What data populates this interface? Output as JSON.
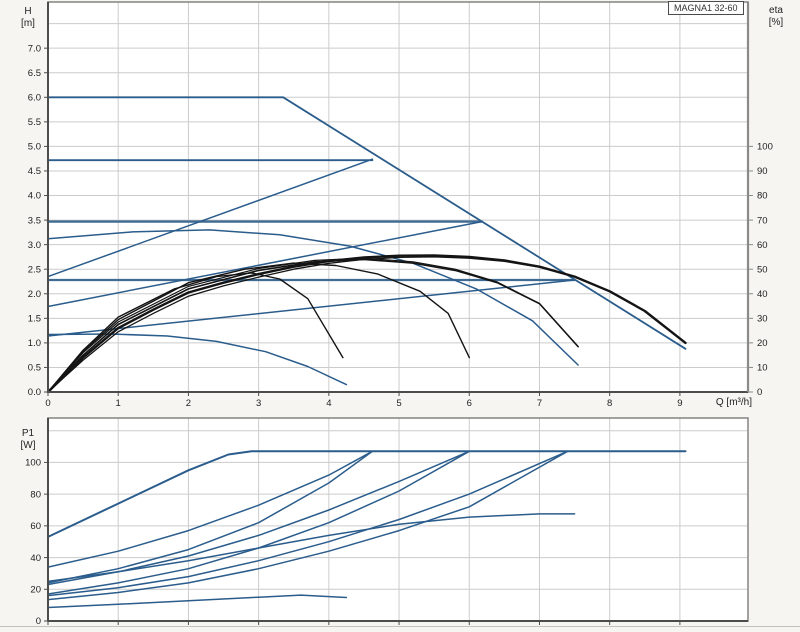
{
  "title_box": "MAGNA1 32-60",
  "labels": {
    "h_axis_1": "H",
    "h_axis_2": "[m]",
    "eta_axis_1": "eta",
    "eta_axis_2": "[%]",
    "q_axis": "Q [m³/h]",
    "p1_axis_1": "P1",
    "p1_axis_2": "[W]"
  },
  "colors": {
    "bg": "#f6f5f1",
    "plot_bg": "#ffffff",
    "grid": "#cccccc",
    "frame": "#8a8a8a",
    "axis_dark": "#4c4c4c",
    "blue": "#2a5c8c",
    "blue_thick": "#3f6a92",
    "black": "#141414",
    "tick_text": "#222222"
  },
  "chart_data": [
    {
      "type": "line",
      "title": "MAGNA1 32-60",
      "xlabel": "Q [m³/h]",
      "ylabel": "H [m]",
      "y2label": "eta [%]",
      "xlim": [
        0,
        9.97
      ],
      "ylim": [
        0,
        7.94
      ],
      "eta_h_per_percent": 0.05,
      "xticks": [
        "0",
        "1",
        "2",
        "3",
        "4",
        "5",
        "6",
        "7",
        "8",
        "9"
      ],
      "xtick_vals": [
        0,
        1,
        2,
        3,
        4,
        5,
        6,
        7,
        8,
        9
      ],
      "ytick_labels": [
        "0.0",
        "0.5",
        "1.0",
        "1.5",
        "2.0",
        "2.5",
        "3.0",
        "3.5",
        "4.0",
        "4.5",
        "5.0",
        "5.5",
        "6.0",
        "6.5",
        "7.0"
      ],
      "ytick_vals": [
        0,
        0.5,
        1,
        1.5,
        2,
        2.5,
        3,
        3.5,
        4,
        4.5,
        5,
        5.5,
        6,
        6.5,
        7
      ],
      "ygrid_vals": [
        0.5,
        1,
        1.5,
        2,
        2.5,
        3,
        3.5,
        4,
        4.5,
        5,
        5.5,
        6,
        6.5,
        7,
        7.5
      ],
      "eta_tick_labels": [
        "0",
        "10",
        "20",
        "30",
        "40",
        "50",
        "60",
        "70",
        "80",
        "90",
        "100"
      ],
      "eta_tick_vals": [
        0,
        10,
        20,
        30,
        40,
        50,
        60,
        70,
        80,
        90,
        100
      ],
      "grid": true,
      "legend": "none",
      "series": [
        {
          "name": "max-curve",
          "style": "blue",
          "w": 1.8,
          "points": [
            [
              0,
              6.0
            ],
            [
              3.35,
              6.0
            ],
            [
              9.08,
              0.88
            ]
          ]
        },
        {
          "name": "const-pressure-4.7",
          "style": "blue",
          "w": 1.8,
          "points": [
            [
              0,
              4.72
            ],
            [
              4.62,
              4.72
            ]
          ]
        },
        {
          "name": "const-pressure-3.5",
          "style": "blue_thick",
          "w": 2.4,
          "points": [
            [
              0,
              3.47
            ],
            [
              6.18,
              3.47
            ]
          ]
        },
        {
          "name": "const-pressure-2.3",
          "style": "blue_thick",
          "w": 2.2,
          "points": [
            [
              0,
              2.28
            ],
            [
              7.5,
              2.28
            ]
          ]
        },
        {
          "name": "prop-pressure-4.7",
          "style": "blue",
          "w": 1.5,
          "points": [
            [
              0,
              2.35
            ],
            [
              4.62,
              4.74
            ]
          ]
        },
        {
          "name": "prop-pressure-3.5",
          "style": "blue",
          "w": 1.5,
          "points": [
            [
              0,
              1.74
            ],
            [
              6.18,
              3.47
            ]
          ]
        },
        {
          "name": "prop-pressure-2.3",
          "style": "blue",
          "w": 1.5,
          "points": [
            [
              0,
              1.14
            ],
            [
              7.5,
              2.28
            ]
          ]
        },
        {
          "name": "speed-curve-ii",
          "style": "blue",
          "w": 1.5,
          "points": [
            [
              0,
              3.12
            ],
            [
              1.2,
              3.26
            ],
            [
              2.3,
              3.3
            ],
            [
              3.3,
              3.2
            ],
            [
              4.3,
              2.97
            ],
            [
              5.2,
              2.62
            ],
            [
              6.1,
              2.1
            ],
            [
              6.9,
              1.45
            ],
            [
              7.55,
              0.55
            ]
          ]
        },
        {
          "name": "speed-curve-i",
          "style": "blue",
          "w": 1.5,
          "points": [
            [
              0,
              1.17
            ],
            [
              0.9,
              1.18
            ],
            [
              1.7,
              1.14
            ],
            [
              2.4,
              1.03
            ],
            [
              3.1,
              0.82
            ],
            [
              3.7,
              0.52
            ],
            [
              4.25,
              0.15
            ]
          ]
        }
      ],
      "eta_series": [
        {
          "name": "eta-max",
          "w": 2.4,
          "points": [
            [
              0,
              0
            ],
            [
              0.5,
              14
            ],
            [
              1,
              26
            ],
            [
              1.5,
              33.5
            ],
            [
              2,
              40.5
            ],
            [
              2.5,
              44.5
            ],
            [
              3,
              48
            ],
            [
              3.5,
              51
            ],
            [
              4,
              53.3
            ],
            [
              4.5,
              54.8
            ],
            [
              5,
              55.5
            ],
            [
              5.5,
              55.6
            ],
            [
              6,
              55
            ],
            [
              6.5,
              53.6
            ],
            [
              7,
              51
            ],
            [
              7.5,
              47
            ],
            [
              8,
              41
            ],
            [
              8.5,
              33
            ],
            [
              9.08,
              20
            ]
          ]
        },
        {
          "name": "eta-max-band",
          "w": 1.3,
          "points": [
            [
              0,
              0
            ],
            [
              0.5,
              13
            ],
            [
              1,
              24.5
            ],
            [
              1.5,
              32
            ],
            [
              2,
              39
            ],
            [
              2.5,
              43.2
            ],
            [
              3,
              46.8
            ],
            [
              3.5,
              50
            ],
            [
              4,
              52.4
            ],
            [
              4.5,
              54
            ],
            [
              5,
              54.8
            ],
            [
              5.5,
              55
            ],
            [
              6,
              54.5
            ],
            [
              6.5,
              53.2
            ],
            [
              7,
              50.8
            ],
            [
              7.5,
              46.9
            ],
            [
              8,
              41
            ],
            [
              8.5,
              33
            ],
            [
              9.08,
              20
            ]
          ]
        },
        {
          "name": "eta-speed-iii",
          "w": 1.6,
          "points": [
            [
              0,
              0
            ],
            [
              0.5,
              15
            ],
            [
              1,
              27.5
            ],
            [
              2,
              42
            ],
            [
              3,
              49.5
            ],
            [
              3.8,
              53
            ],
            [
              4.5,
              54
            ],
            [
              5.2,
              52.5
            ],
            [
              5.8,
              49.5
            ],
            [
              6.4,
              44.5
            ],
            [
              7,
              36
            ],
            [
              7.55,
              18.5
            ]
          ]
        },
        {
          "name": "eta-speed-iii-band",
          "w": 1.2,
          "points": [
            [
              0,
              0
            ],
            [
              0.5,
              16
            ],
            [
              1,
              28.5
            ],
            [
              2,
              43
            ],
            [
              3,
              50.3
            ],
            [
              3.8,
              53.6
            ],
            [
              4.5,
              54.5
            ],
            [
              5.2,
              53
            ],
            [
              5.8,
              50
            ],
            [
              6.4,
              44.8
            ],
            [
              7,
              36
            ],
            [
              7.55,
              18.5
            ]
          ]
        },
        {
          "name": "eta-speed-ii",
          "w": 1.4,
          "points": [
            [
              0,
              0
            ],
            [
              0.5,
              16.5
            ],
            [
              1,
              29.5
            ],
            [
              2,
              44.5
            ],
            [
              2.8,
              50
            ],
            [
              3.5,
              52.5
            ],
            [
              4.1,
              51.5
            ],
            [
              4.7,
              48
            ],
            [
              5.3,
              41
            ],
            [
              5.7,
              32
            ],
            [
              6.0,
              14
            ]
          ]
        },
        {
          "name": "eta-speed-i",
          "w": 1.4,
          "points": [
            [
              0,
              0
            ],
            [
              0.5,
              17
            ],
            [
              1,
              30.5
            ],
            [
              1.8,
              42
            ],
            [
              2.4,
              47
            ],
            [
              2.9,
              48.5
            ],
            [
              3.3,
              46
            ],
            [
              3.7,
              38
            ],
            [
              4.2,
              14
            ]
          ]
        }
      ]
    },
    {
      "type": "line",
      "title": "",
      "xlabel": "",
      "ylabel": "P1 [W]",
      "xlim": [
        0,
        9.97
      ],
      "ylim": [
        0,
        128
      ],
      "xtick_vals": [
        0,
        1,
        2,
        3,
        4,
        5,
        6,
        7,
        8,
        9
      ],
      "xticks": [],
      "ytick_labels": [
        "0",
        "20",
        "40",
        "60",
        "80",
        "100"
      ],
      "ytick_vals": [
        0,
        20,
        40,
        60,
        80,
        100
      ],
      "ygrid_vals": [
        20,
        40,
        60,
        80,
        100,
        120
      ],
      "grid": true,
      "legend": "none",
      "series": [
        {
          "name": "p1-max",
          "style": "blue",
          "w": 2.0,
          "points": [
            [
              0,
              53
            ],
            [
              1,
              74
            ],
            [
              2,
              95
            ],
            [
              2.57,
              105
            ],
            [
              2.9,
              107
            ],
            [
              9.08,
              107
            ]
          ]
        },
        {
          "name": "p1-const-4.7",
          "style": "blue",
          "w": 1.5,
          "points": [
            [
              0,
              34
            ],
            [
              1,
              44
            ],
            [
              2,
              57
            ],
            [
              3,
              73
            ],
            [
              4,
              92
            ],
            [
              4.62,
              107
            ]
          ]
        },
        {
          "name": "p1-prop-4.7",
          "style": "blue",
          "w": 1.5,
          "points": [
            [
              0,
              24
            ],
            [
              1,
              33
            ],
            [
              2,
              45
            ],
            [
              3,
              62
            ],
            [
              4,
              87
            ],
            [
              4.62,
              107
            ]
          ]
        },
        {
          "name": "p1-const-3.5",
          "style": "blue",
          "w": 1.5,
          "points": [
            [
              0,
              23
            ],
            [
              1,
              31
            ],
            [
              2,
              41
            ],
            [
              3,
              54
            ],
            [
              4,
              70
            ],
            [
              5,
              88
            ],
            [
              6.0,
              107
            ]
          ]
        },
        {
          "name": "p1-prop-3.5",
          "style": "blue",
          "w": 1.5,
          "points": [
            [
              0,
              17
            ],
            [
              1,
              24
            ],
            [
              2,
              33
            ],
            [
              3,
              46
            ],
            [
              4,
              62
            ],
            [
              5,
              82
            ],
            [
              6.0,
              107
            ]
          ]
        },
        {
          "name": "p1-const-2.3",
          "style": "blue",
          "w": 1.5,
          "points": [
            [
              0,
              16
            ],
            [
              1,
              21
            ],
            [
              2,
              28
            ],
            [
              3,
              38
            ],
            [
              4,
              50
            ],
            [
              5,
              64
            ],
            [
              6,
              80
            ],
            [
              7.4,
              107
            ]
          ]
        },
        {
          "name": "p1-prop-2.3",
          "style": "blue",
          "w": 1.5,
          "points": [
            [
              0,
              13.5
            ],
            [
              1,
              18
            ],
            [
              2,
              24
            ],
            [
              3,
              33
            ],
            [
              4,
              44
            ],
            [
              5,
              57
            ],
            [
              6,
              72
            ],
            [
              7.4,
              107
            ]
          ]
        },
        {
          "name": "p1-speed-ii",
          "style": "blue",
          "w": 1.5,
          "points": [
            [
              0,
              25
            ],
            [
              1,
              31
            ],
            [
              2,
              38
            ],
            [
              3,
              46
            ],
            [
              4,
              54
            ],
            [
              5,
              61
            ],
            [
              6,
              65.5
            ],
            [
              7,
              67.5
            ],
            [
              7.5,
              67.5
            ]
          ]
        },
        {
          "name": "p1-speed-i",
          "style": "blue",
          "w": 1.5,
          "points": [
            [
              0,
              8.5
            ],
            [
              1,
              10.5
            ],
            [
              2,
              12.8
            ],
            [
              3,
              15
            ],
            [
              3.6,
              16.3
            ],
            [
              4.25,
              14.8
            ]
          ]
        }
      ]
    }
  ]
}
